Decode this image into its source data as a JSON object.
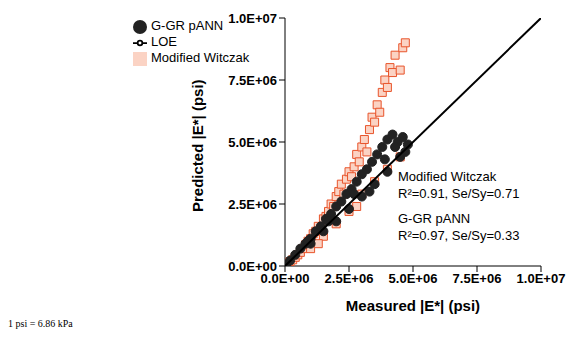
{
  "chart_data": {
    "type": "scatter",
    "x_label": "Measured |E*| (psi)",
    "y_label": "Predicted |E*| (psi)",
    "footnote": "1 psi = 6.86 kPa",
    "annotations": [
      "Modified Witczak",
      "R²=0.91, Se/Sy=0.71",
      "G-GR pANN",
      "R²=0.97, Se/Sy=0.33"
    ],
    "xlim": [
      0,
      10000000
    ],
    "ylim": [
      0,
      10000000
    ],
    "xticks": [
      {
        "value": 0,
        "label": "0.0E+00"
      },
      {
        "value": 2500000,
        "label": "2.5E+06"
      },
      {
        "value": 5000000,
        "label": "5.0E+06"
      },
      {
        "value": 7500000,
        "label": "7.5E+06"
      },
      {
        "value": 10000000,
        "label": "1.0E+07"
      }
    ],
    "yticks": [
      {
        "value": 0,
        "label": "0.0E+00"
      },
      {
        "value": 2500000,
        "label": "2.5E+06"
      },
      {
        "value": 5000000,
        "label": "5.0E+06"
      },
      {
        "value": 7500000,
        "label": "7.5E+06"
      },
      {
        "value": 10000000,
        "label": "1.0E+07"
      }
    ],
    "grid": false,
    "legend": "top-left",
    "series": [
      {
        "name": "Modified Witczak",
        "type": "scatter",
        "marker": "square",
        "color": "#e8542b",
        "x": [
          50000,
          100000,
          150000,
          200000,
          300000,
          400000,
          500000,
          600000,
          700000,
          800000,
          900000,
          1000000,
          1100000,
          1200000,
          1300000,
          1400000,
          1500000,
          1600000,
          1700000,
          1800000,
          1900000,
          2000000,
          2100000,
          2200000,
          2300000,
          2400000,
          2500000,
          2600000,
          2700000,
          2800000,
          2900000,
          3000000,
          3100000,
          3200000,
          3300000,
          3400000,
          3500000,
          3600000,
          3700000,
          3800000,
          3900000,
          4000000,
          4100000,
          4200000,
          4300000,
          4500000,
          4600000,
          4700000,
          1000000,
          1500000,
          2000000,
          2500000,
          3000000,
          3500000,
          4000000,
          4500000,
          2800000,
          1300000
        ],
        "values": [
          60000,
          80000,
          120000,
          180000,
          250000,
          350000,
          450000,
          550000,
          700000,
          850000,
          1000000,
          1100000,
          1300000,
          1400000,
          1600000,
          1500000,
          1900000,
          2000000,
          2200000,
          2500000,
          2400000,
          2800000,
          3000000,
          3300000,
          2900000,
          3500000,
          3800000,
          3600000,
          4000000,
          4500000,
          4200000,
          4800000,
          5100000,
          4600000,
          5500000,
          6000000,
          5800000,
          6500000,
          6200000,
          7000000,
          7500000,
          7200000,
          8000000,
          7800000,
          8500000,
          7900000,
          8800000,
          9000000,
          700000,
          1200000,
          1700000,
          2200000,
          2900000,
          3400000,
          3900000,
          4400000,
          2400000,
          900000
        ]
      },
      {
        "name": "G-GR pANN",
        "type": "scatter",
        "marker": "circle",
        "color": "#222222",
        "x": [
          50000,
          200000,
          400000,
          600000,
          800000,
          1000000,
          1200000,
          1400000,
          1600000,
          1800000,
          2000000,
          2200000,
          2400000,
          2600000,
          2800000,
          3000000,
          3200000,
          3400000,
          3600000,
          3800000,
          4000000,
          4200000,
          4400000,
          4600000,
          4800000,
          1000000,
          1500000,
          2000000,
          2500000,
          3000000,
          3500000,
          4000000,
          4500000,
          3300000,
          2700000,
          1700000,
          900000,
          3900000,
          4300000,
          4700000
        ],
        "values": [
          60000,
          220000,
          450000,
          700000,
          900000,
          1100000,
          1400000,
          1600000,
          1900000,
          2100000,
          2400000,
          2600000,
          2900000,
          3100000,
          3400000,
          3700000,
          3900000,
          4200000,
          4500000,
          4800000,
          5100000,
          5300000,
          5000000,
          5200000,
          4900000,
          900000,
          1400000,
          1800000,
          2300000,
          2800000,
          3300000,
          3800000,
          4400000,
          3000000,
          2900000,
          1800000,
          1000000,
          4300000,
          4800000,
          4600000
        ]
      },
      {
        "name": "LOE",
        "type": "line",
        "color": "#000000",
        "x": [
          0,
          10000000
        ],
        "values": [
          0,
          10000000
        ]
      }
    ]
  }
}
